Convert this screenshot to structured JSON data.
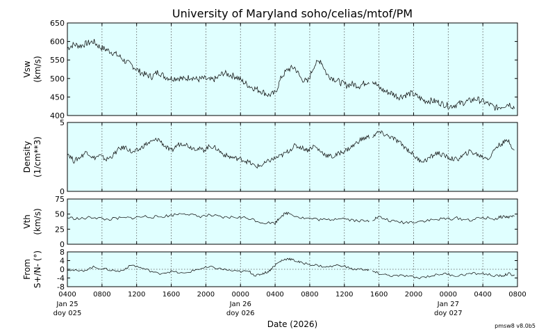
{
  "chart_data": {
    "type": "line",
    "title": "University of Maryland  soho/celias/mtof/PM",
    "xlabel": "Date (2026)",
    "footer": "pmsw8 v8.0b5",
    "background_color": "#e0ffff",
    "line_color": "#000000",
    "grid": "dotted vertical lines at every x tick; dotted zero line on the From panel",
    "x_axis": {
      "start_hours": 0,
      "end_hours": 52,
      "tick_labels": [
        "0400",
        "0800",
        "1200",
        "1600",
        "2000",
        "0000",
        "0400",
        "0800",
        "1200",
        "1600",
        "2000",
        "0000",
        "0400",
        "0800"
      ],
      "day_labels": [
        {
          "tick": 0,
          "date": "Jan 25",
          "doy": "doy 025"
        },
        {
          "tick": 5,
          "date": "Jan 26",
          "doy": "doy 026"
        },
        {
          "tick": 11,
          "date": "Jan 27",
          "doy": "doy 027"
        }
      ]
    },
    "panels": [
      {
        "name": "vsw",
        "label_lines": [
          "Vsw",
          "(km/s)"
        ],
        "ylim": [
          400,
          650
        ],
        "y_ticks": [
          "400",
          "450",
          "500",
          "550",
          "600",
          "650"
        ],
        "y_tick_values": [
          400,
          450,
          500,
          550,
          600,
          650
        ],
        "gaps": [
          [
            46.5,
            47.0
          ]
        ],
        "points": [
          [
            0,
            582
          ],
          [
            1,
            592
          ],
          [
            2,
            588
          ],
          [
            3,
            595
          ],
          [
            4,
            600
          ],
          [
            5,
            585
          ],
          [
            6,
            578
          ],
          [
            7,
            570
          ],
          [
            8,
            560
          ],
          [
            9,
            545
          ],
          [
            10,
            535
          ],
          [
            11,
            520
          ],
          [
            12,
            510
          ],
          [
            13,
            505
          ],
          [
            14,
            518
          ],
          [
            15,
            505
          ],
          [
            16,
            500
          ],
          [
            17,
            502
          ],
          [
            18,
            498
          ],
          [
            19,
            505
          ],
          [
            20,
            497
          ],
          [
            21,
            500
          ],
          [
            22,
            495
          ],
          [
            23,
            500
          ],
          [
            24,
            515
          ],
          [
            25,
            510
          ],
          [
            26,
            505
          ],
          [
            27,
            492
          ],
          [
            28,
            480
          ],
          [
            29,
            472
          ],
          [
            30,
            465
          ],
          [
            31,
            455
          ],
          [
            32,
            460
          ],
          [
            33,
            505
          ],
          [
            34,
            525
          ],
          [
            35,
            530
          ],
          [
            36,
            500
          ],
          [
            37,
            490
          ],
          [
            38,
            535
          ],
          [
            39,
            550
          ],
          [
            40,
            510
          ],
          [
            41,
            500
          ],
          [
            42,
            490
          ],
          [
            43,
            482
          ],
          [
            44,
            485
          ],
          [
            45,
            480
          ],
          [
            46,
            490
          ],
          [
            47,
            495
          ],
          [
            48,
            475
          ],
          [
            49,
            465
          ],
          [
            50,
            460
          ],
          [
            51,
            450
          ],
          [
            52,
            455
          ],
          [
            53,
            460
          ],
          [
            54,
            450
          ],
          [
            55,
            440
          ],
          [
            56,
            440
          ],
          [
            57,
            437
          ],
          [
            58,
            430
          ],
          [
            59,
            425
          ],
          [
            60,
            430
          ],
          [
            61,
            435
          ],
          [
            62,
            440
          ],
          [
            63,
            445
          ],
          [
            64,
            438
          ],
          [
            65,
            430
          ],
          [
            66,
            420
          ],
          [
            67,
            425
          ],
          [
            68,
            432
          ],
          [
            69,
            420
          ]
        ]
      },
      {
        "name": "density",
        "label_lines": [
          "Density",
          "(1/cm**3)"
        ],
        "ylim": [
          0,
          5
        ],
        "y_ticks": [
          "0",
          "5"
        ],
        "y_tick_values": [
          0,
          5
        ],
        "gaps": [
          [
            46.5,
            47.0
          ]
        ],
        "points": [
          [
            0,
            2.8
          ],
          [
            1,
            2.2
          ],
          [
            2,
            2.5
          ],
          [
            3,
            2.9
          ],
          [
            4,
            2.4
          ],
          [
            5,
            2.6
          ],
          [
            6,
            2.3
          ],
          [
            7,
            2.6
          ],
          [
            8,
            3.1
          ],
          [
            9,
            3.2
          ],
          [
            10,
            2.8
          ],
          [
            11,
            3.0
          ],
          [
            12,
            3.4
          ],
          [
            13,
            3.6
          ],
          [
            14,
            3.8
          ],
          [
            15,
            3.3
          ],
          [
            16,
            2.9
          ],
          [
            17,
            3.4
          ],
          [
            18,
            3.5
          ],
          [
            19,
            3.2
          ],
          [
            20,
            3.1
          ],
          [
            21,
            3.0
          ],
          [
            22,
            3.3
          ],
          [
            23,
            3.1
          ],
          [
            24,
            2.7
          ],
          [
            25,
            2.5
          ],
          [
            26,
            2.4
          ],
          [
            27,
            2.3
          ],
          [
            28,
            2.1
          ],
          [
            29,
            1.8
          ],
          [
            30,
            1.9
          ],
          [
            31,
            2.2
          ],
          [
            32,
            2.4
          ],
          [
            33,
            2.6
          ],
          [
            34,
            2.9
          ],
          [
            35,
            3.3
          ],
          [
            36,
            3.2
          ],
          [
            37,
            3.0
          ],
          [
            38,
            3.3
          ],
          [
            39,
            2.9
          ],
          [
            40,
            2.6
          ],
          [
            41,
            2.5
          ],
          [
            42,
            2.8
          ],
          [
            43,
            3.0
          ],
          [
            44,
            3.3
          ],
          [
            45,
            3.7
          ],
          [
            46,
            3.9
          ],
          [
            47,
            4.0
          ],
          [
            48,
            4.3
          ],
          [
            49,
            4.1
          ],
          [
            50,
            3.9
          ],
          [
            51,
            3.6
          ],
          [
            52,
            3.2
          ],
          [
            53,
            2.8
          ],
          [
            54,
            2.3
          ],
          [
            55,
            2.2
          ],
          [
            56,
            2.5
          ],
          [
            57,
            2.8
          ],
          [
            58,
            2.6
          ],
          [
            59,
            2.4
          ],
          [
            60,
            2.3
          ],
          [
            61,
            2.6
          ],
          [
            62,
            2.9
          ],
          [
            63,
            2.7
          ],
          [
            64,
            2.5
          ],
          [
            65,
            2.4
          ],
          [
            66,
            3.2
          ],
          [
            67,
            3.5
          ],
          [
            68,
            3.7
          ],
          [
            69,
            2.8
          ]
        ]
      },
      {
        "name": "vth",
        "label_lines": [
          "Vth",
          "(km/s)"
        ],
        "ylim": [
          0,
          75
        ],
        "y_ticks": [
          "0",
          "25",
          "50",
          "75"
        ],
        "y_tick_values": [
          0,
          25,
          50,
          75
        ],
        "gaps": [
          [
            46.5,
            47.0
          ]
        ],
        "points": [
          [
            0,
            44
          ],
          [
            2,
            42
          ],
          [
            4,
            45
          ],
          [
            6,
            41
          ],
          [
            8,
            43
          ],
          [
            10,
            44
          ],
          [
            12,
            46
          ],
          [
            14,
            45
          ],
          [
            16,
            48
          ],
          [
            18,
            52
          ],
          [
            20,
            46
          ],
          [
            22,
            48
          ],
          [
            24,
            44
          ],
          [
            26,
            45
          ],
          [
            28,
            43
          ],
          [
            30,
            36
          ],
          [
            32,
            35
          ],
          [
            33,
            48
          ],
          [
            34,
            52
          ],
          [
            36,
            44
          ],
          [
            38,
            42
          ],
          [
            40,
            40
          ],
          [
            42,
            44
          ],
          [
            44,
            40
          ],
          [
            46,
            38
          ],
          [
            47,
            41
          ],
          [
            48,
            45
          ],
          [
            50,
            38
          ],
          [
            52,
            36
          ],
          [
            54,
            38
          ],
          [
            56,
            40
          ],
          [
            58,
            42
          ],
          [
            60,
            43
          ],
          [
            62,
            40
          ],
          [
            64,
            44
          ],
          [
            66,
            42
          ],
          [
            67,
            46
          ],
          [
            68,
            45
          ],
          [
            69,
            48
          ]
        ]
      },
      {
        "name": "from",
        "label_lines": [
          "From",
          "S+/N- (°)"
        ],
        "ylim": [
          -8,
          8
        ],
        "y_ticks": [
          "-8",
          "-4",
          "0",
          "4",
          "8"
        ],
        "y_tick_values": [
          -8,
          -4,
          0,
          4,
          8
        ],
        "zero_line": true,
        "gaps": [
          [
            46.5,
            47.0
          ]
        ],
        "points": [
          [
            0,
            0
          ],
          [
            2,
            -1
          ],
          [
            4,
            1
          ],
          [
            6,
            0
          ],
          [
            8,
            -1
          ],
          [
            10,
            2
          ],
          [
            12,
            0
          ],
          [
            14,
            -2
          ],
          [
            16,
            -1
          ],
          [
            18,
            -2
          ],
          [
            20,
            0
          ],
          [
            22,
            1
          ],
          [
            24,
            0
          ],
          [
            26,
            -1
          ],
          [
            28,
            -1
          ],
          [
            29,
            -3
          ],
          [
            30,
            -2
          ],
          [
            31,
            -1
          ],
          [
            32,
            2
          ],
          [
            33,
            4
          ],
          [
            34,
            5
          ],
          [
            35,
            4
          ],
          [
            36,
            3
          ],
          [
            38,
            2
          ],
          [
            40,
            1
          ],
          [
            42,
            2
          ],
          [
            44,
            0
          ],
          [
            46,
            0
          ],
          [
            47,
            -1
          ],
          [
            48,
            -2
          ],
          [
            50,
            -3
          ],
          [
            52,
            -3
          ],
          [
            54,
            -4
          ],
          [
            56,
            -3
          ],
          [
            58,
            -2
          ],
          [
            60,
            -3
          ],
          [
            62,
            -2
          ],
          [
            64,
            -2
          ],
          [
            66,
            -3
          ],
          [
            67,
            -3
          ],
          [
            68,
            -2
          ],
          [
            69,
            -3
          ]
        ]
      }
    ]
  }
}
